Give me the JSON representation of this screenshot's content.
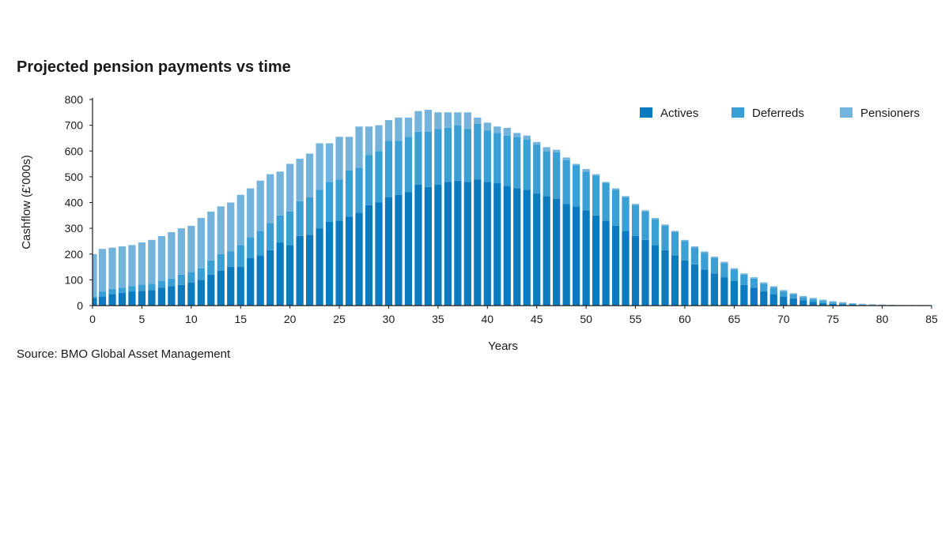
{
  "page": {
    "title": "Projected pension payments vs time",
    "source": "Source: BMO Global Asset Management"
  },
  "chart_data": {
    "type": "bar",
    "stacked": true,
    "title": "Projected pension payments vs time",
    "xlabel": "Years",
    "ylabel": "Cashflow (£'000s)",
    "xlim": [
      0,
      85
    ],
    "ylim": [
      0,
      800
    ],
    "x_ticks": [
      0,
      5,
      10,
      15,
      20,
      25,
      30,
      35,
      40,
      45,
      50,
      55,
      60,
      65,
      70,
      75,
      80,
      85
    ],
    "y_ticks": [
      0,
      100,
      200,
      300,
      400,
      500,
      600,
      700,
      800
    ],
    "legend_position": "top-right",
    "grid": false,
    "x": [
      0,
      1,
      2,
      3,
      4,
      5,
      6,
      7,
      8,
      9,
      10,
      11,
      12,
      13,
      14,
      15,
      16,
      17,
      18,
      19,
      20,
      21,
      22,
      23,
      24,
      25,
      26,
      27,
      28,
      29,
      30,
      31,
      32,
      33,
      34,
      35,
      36,
      37,
      38,
      39,
      40,
      41,
      42,
      43,
      44,
      45,
      46,
      47,
      48,
      49,
      50,
      51,
      52,
      53,
      54,
      55,
      56,
      57,
      58,
      59,
      60,
      61,
      62,
      63,
      64,
      65,
      66,
      67,
      68,
      69,
      70,
      71,
      72,
      73,
      74,
      75,
      76,
      77,
      78,
      79,
      80,
      81,
      82,
      83,
      84,
      85
    ],
    "series": [
      {
        "name": "Actives",
        "color": "#0b7abf",
        "values": [
          30,
          35,
          45,
          50,
          55,
          57,
          60,
          70,
          75,
          80,
          90,
          100,
          120,
          135,
          150,
          150,
          185,
          195,
          215,
          245,
          235,
          270,
          275,
          300,
          325,
          330,
          345,
          360,
          390,
          400,
          420,
          430,
          440,
          470,
          460,
          470,
          480,
          485,
          480,
          490,
          480,
          475,
          465,
          455,
          450,
          435,
          425,
          415,
          395,
          385,
          370,
          350,
          330,
          310,
          290,
          270,
          255,
          235,
          215,
          195,
          175,
          160,
          140,
          125,
          110,
          95,
          80,
          70,
          55,
          45,
          35,
          28,
          20,
          15,
          10,
          7,
          5,
          3,
          2,
          1,
          1,
          0,
          0,
          0,
          0,
          0
        ]
      },
      {
        "name": "Deferreds",
        "color": "#3a9fd4",
        "values": [
          5,
          20,
          20,
          20,
          20,
          25,
          25,
          25,
          30,
          40,
          40,
          45,
          55,
          65,
          60,
          85,
          80,
          95,
          105,
          105,
          130,
          135,
          145,
          150,
          155,
          160,
          180,
          175,
          195,
          200,
          220,
          210,
          215,
          205,
          215,
          215,
          210,
          215,
          205,
          215,
          200,
          195,
          195,
          200,
          195,
          190,
          175,
          180,
          170,
          160,
          150,
          155,
          145,
          140,
          130,
          120,
          110,
          100,
          95,
          90,
          75,
          65,
          65,
          60,
          55,
          45,
          40,
          35,
          30,
          25,
          20,
          15,
          12,
          10,
          8,
          5,
          4,
          3,
          2,
          1,
          1,
          1,
          0,
          0,
          0,
          0
        ]
      },
      {
        "name": "Pensioners",
        "color": "#73b3dc",
        "values": [
          165,
          165,
          160,
          160,
          160,
          163,
          170,
          175,
          180,
          180,
          180,
          195,
          190,
          185,
          190,
          195,
          190,
          195,
          190,
          170,
          185,
          165,
          170,
          180,
          150,
          165,
          130,
          160,
          110,
          100,
          80,
          90,
          75,
          80,
          85,
          65,
          60,
          50,
          65,
          25,
          30,
          25,
          30,
          15,
          15,
          10,
          15,
          10,
          10,
          5,
          10,
          5,
          5,
          5,
          5,
          5,
          5,
          5,
          5,
          5,
          5,
          5,
          5,
          5,
          5,
          5,
          5,
          5,
          5,
          5,
          5,
          5,
          5,
          5,
          5,
          5,
          4,
          3,
          3,
          3,
          2,
          2,
          2,
          2,
          2,
          1
        ]
      }
    ]
  }
}
